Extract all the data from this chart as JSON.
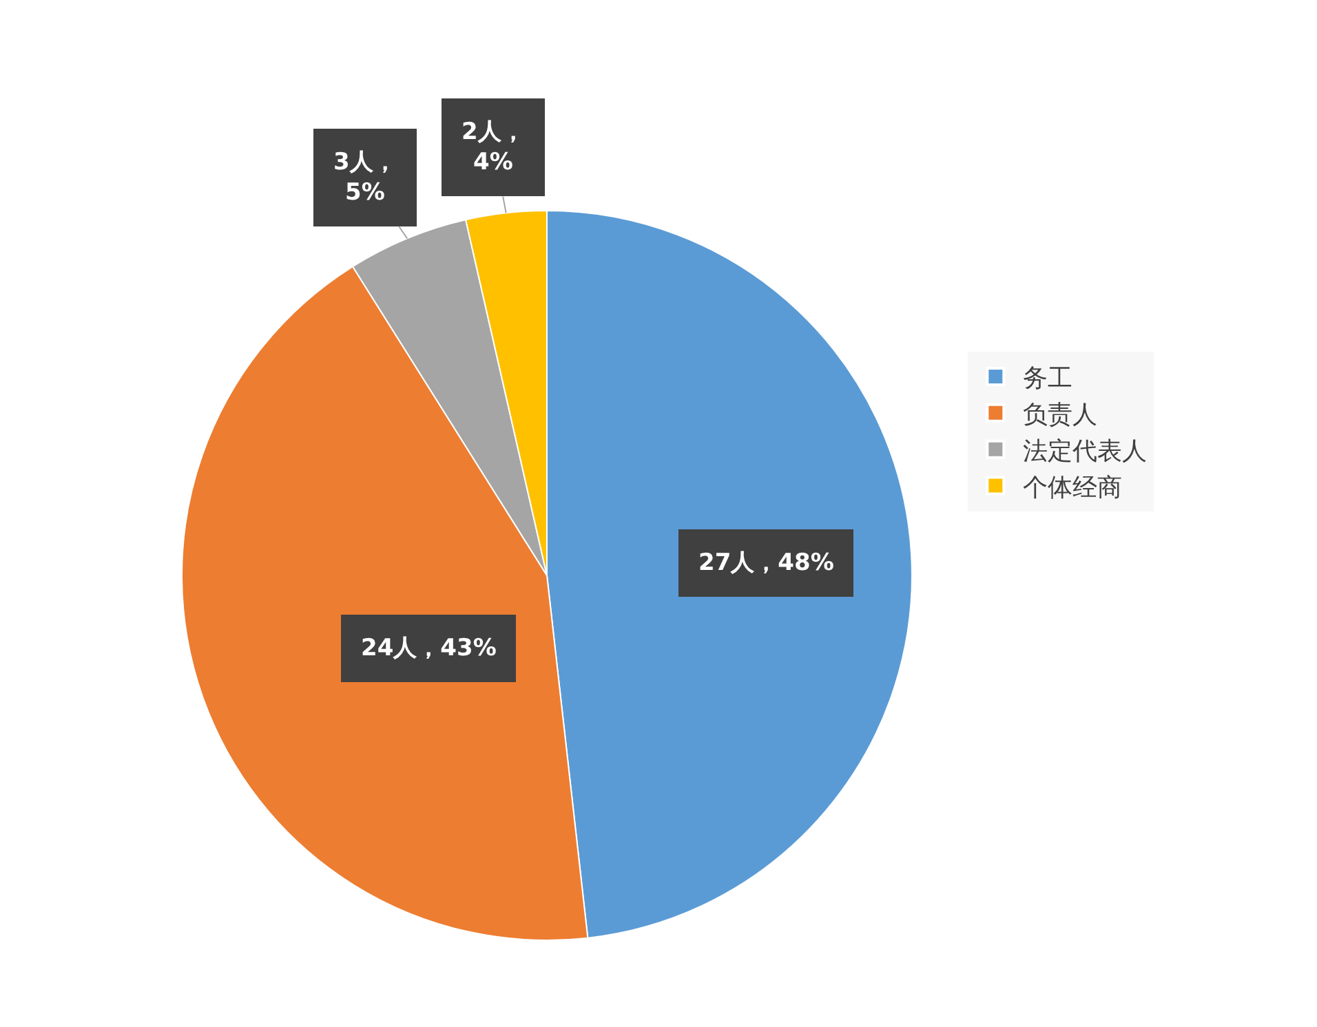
{
  "chart_data": {
    "type": "pie",
    "categories": [
      "务工",
      "负责人",
      "法定代表人",
      "个体经商"
    ],
    "values": [
      27,
      24,
      3,
      2
    ],
    "colors": [
      "#5b9bd5",
      "#ed7d31",
      "#a5a5a5",
      "#ffc000"
    ],
    "value_labels": [
      "27人，48%",
      "24人，43%",
      "3人，5%",
      "2人，4%"
    ],
    "legend": "right"
  }
}
